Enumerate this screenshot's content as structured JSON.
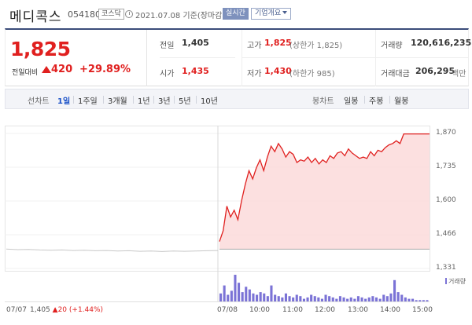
{
  "header": {
    "name": "메디콕스",
    "code": "054180",
    "market": "코스닥",
    "date": "2021.07.08 기준(장마감)",
    "realtime_label": "실시간",
    "company_label": "기업개요"
  },
  "quote": {
    "price": "1,825",
    "change_label": "전일대비",
    "change": "420",
    "change_pct": "+29.89%",
    "prev_close_label": "전일",
    "prev_close": "1,405",
    "open_label": "시가",
    "open": "1,435",
    "high_label": "고가",
    "high": "1,825",
    "upper_limit": "(상한가 1,825)",
    "low_label": "저가",
    "low": "1,430",
    "lower_limit": "(하한가 985)",
    "volume_label": "거래량",
    "volume": "120,616,235",
    "amount_label": "거래대금",
    "amount": "206,295",
    "amount_unit": "백만"
  },
  "tabs": {
    "line_title": "선차트",
    "line_items": [
      "1일",
      "1주일",
      "3개월",
      "1년",
      "3년",
      "5년",
      "10년"
    ],
    "active": "1일",
    "candle_title": "봉차트",
    "candle_items": [
      "일봉",
      "주봉",
      "월봉"
    ]
  },
  "colors": {
    "up": "#e0201f",
    "area_fill": "#fbdada",
    "volume": "#7b73d6",
    "accent": "#1c52c8"
  },
  "chart_data": {
    "type": "line",
    "y_ticks": [
      "1,870",
      "1,735",
      "1,600",
      "1,466",
      "1,331"
    ],
    "ylim": [
      1331,
      1870
    ],
    "x_ticks": [
      "07/08",
      "10:00",
      "11:00",
      "12:00",
      "13:00",
      "14:00",
      "15:00"
    ],
    "prev_day_tick": "07/07",
    "prev_day_summary": {
      "close": "1,405",
      "change": "20",
      "pct": "(+1.44%)"
    },
    "base_price": 1405,
    "prev_day_values": [
      1405,
      1403,
      1404,
      1402,
      1401,
      1402,
      1400,
      1401,
      1399,
      1400,
      1398,
      1399,
      1397,
      1398,
      1396,
      1398,
      1397,
      1398,
      1399,
      1400
    ],
    "today_values": [
      1430,
      1470,
      1560,
      1520,
      1545,
      1510,
      1580,
      1640,
      1690,
      1660,
      1700,
      1730,
      1690,
      1740,
      1780,
      1760,
      1790,
      1770,
      1740,
      1760,
      1750,
      1720,
      1730,
      1725,
      1740,
      1720,
      1735,
      1715,
      1730,
      1720,
      1745,
      1735,
      1755,
      1760,
      1745,
      1770,
      1755,
      1745,
      1735,
      1740,
      1735,
      1760,
      1745,
      1765,
      1760,
      1775,
      1785,
      1790,
      1800,
      1790,
      1825,
      1825,
      1825,
      1825,
      1825,
      1825,
      1825,
      1825
    ],
    "volume_legend": "거래량",
    "volume_values": [
      30,
      60,
      25,
      40,
      100,
      70,
      35,
      55,
      45,
      30,
      25,
      35,
      30,
      20,
      60,
      25,
      20,
      15,
      30,
      20,
      15,
      25,
      20,
      10,
      15,
      25,
      20,
      15,
      10,
      25,
      20,
      15,
      10,
      20,
      15,
      10,
      15,
      10,
      20,
      15,
      10,
      15,
      20,
      15,
      10,
      25,
      20,
      30,
      80,
      35,
      25,
      15,
      10,
      10,
      5,
      5,
      5,
      5
    ]
  }
}
